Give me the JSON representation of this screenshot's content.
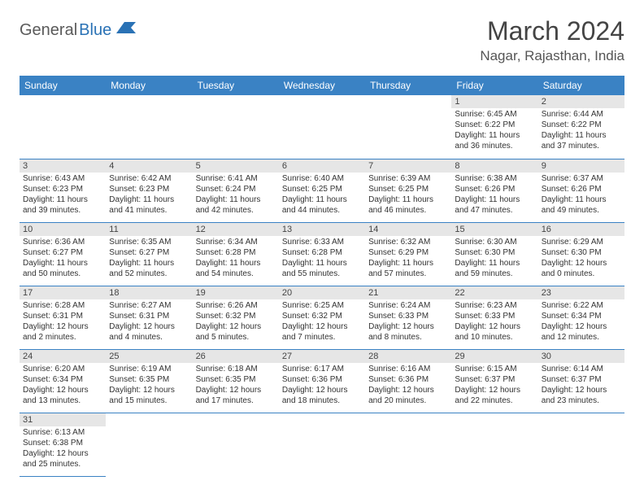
{
  "logo": {
    "part1": "General",
    "part2": "Blue"
  },
  "title": "March 2024",
  "location": "Nagar, Rajasthan, India",
  "colors": {
    "header_bg": "#3a82c4",
    "header_fg": "#ffffff",
    "daynum_bg": "#e6e6e6",
    "rule": "#3a82c4",
    "logo_gray": "#5a5a5a",
    "logo_blue": "#2a72b5"
  },
  "weekdays": [
    "Sunday",
    "Monday",
    "Tuesday",
    "Wednesday",
    "Thursday",
    "Friday",
    "Saturday"
  ],
  "weeks": [
    [
      null,
      null,
      null,
      null,
      null,
      {
        "n": "1",
        "sr": "Sunrise: 6:45 AM",
        "ss": "Sunset: 6:22 PM",
        "dl": "Daylight: 11 hours and 36 minutes."
      },
      {
        "n": "2",
        "sr": "Sunrise: 6:44 AM",
        "ss": "Sunset: 6:22 PM",
        "dl": "Daylight: 11 hours and 37 minutes."
      }
    ],
    [
      {
        "n": "3",
        "sr": "Sunrise: 6:43 AM",
        "ss": "Sunset: 6:23 PM",
        "dl": "Daylight: 11 hours and 39 minutes."
      },
      {
        "n": "4",
        "sr": "Sunrise: 6:42 AM",
        "ss": "Sunset: 6:23 PM",
        "dl": "Daylight: 11 hours and 41 minutes."
      },
      {
        "n": "5",
        "sr": "Sunrise: 6:41 AM",
        "ss": "Sunset: 6:24 PM",
        "dl": "Daylight: 11 hours and 42 minutes."
      },
      {
        "n": "6",
        "sr": "Sunrise: 6:40 AM",
        "ss": "Sunset: 6:25 PM",
        "dl": "Daylight: 11 hours and 44 minutes."
      },
      {
        "n": "7",
        "sr": "Sunrise: 6:39 AM",
        "ss": "Sunset: 6:25 PM",
        "dl": "Daylight: 11 hours and 46 minutes."
      },
      {
        "n": "8",
        "sr": "Sunrise: 6:38 AM",
        "ss": "Sunset: 6:26 PM",
        "dl": "Daylight: 11 hours and 47 minutes."
      },
      {
        "n": "9",
        "sr": "Sunrise: 6:37 AM",
        "ss": "Sunset: 6:26 PM",
        "dl": "Daylight: 11 hours and 49 minutes."
      }
    ],
    [
      {
        "n": "10",
        "sr": "Sunrise: 6:36 AM",
        "ss": "Sunset: 6:27 PM",
        "dl": "Daylight: 11 hours and 50 minutes."
      },
      {
        "n": "11",
        "sr": "Sunrise: 6:35 AM",
        "ss": "Sunset: 6:27 PM",
        "dl": "Daylight: 11 hours and 52 minutes."
      },
      {
        "n": "12",
        "sr": "Sunrise: 6:34 AM",
        "ss": "Sunset: 6:28 PM",
        "dl": "Daylight: 11 hours and 54 minutes."
      },
      {
        "n": "13",
        "sr": "Sunrise: 6:33 AM",
        "ss": "Sunset: 6:28 PM",
        "dl": "Daylight: 11 hours and 55 minutes."
      },
      {
        "n": "14",
        "sr": "Sunrise: 6:32 AM",
        "ss": "Sunset: 6:29 PM",
        "dl": "Daylight: 11 hours and 57 minutes."
      },
      {
        "n": "15",
        "sr": "Sunrise: 6:30 AM",
        "ss": "Sunset: 6:30 PM",
        "dl": "Daylight: 11 hours and 59 minutes."
      },
      {
        "n": "16",
        "sr": "Sunrise: 6:29 AM",
        "ss": "Sunset: 6:30 PM",
        "dl": "Daylight: 12 hours and 0 minutes."
      }
    ],
    [
      {
        "n": "17",
        "sr": "Sunrise: 6:28 AM",
        "ss": "Sunset: 6:31 PM",
        "dl": "Daylight: 12 hours and 2 minutes."
      },
      {
        "n": "18",
        "sr": "Sunrise: 6:27 AM",
        "ss": "Sunset: 6:31 PM",
        "dl": "Daylight: 12 hours and 4 minutes."
      },
      {
        "n": "19",
        "sr": "Sunrise: 6:26 AM",
        "ss": "Sunset: 6:32 PM",
        "dl": "Daylight: 12 hours and 5 minutes."
      },
      {
        "n": "20",
        "sr": "Sunrise: 6:25 AM",
        "ss": "Sunset: 6:32 PM",
        "dl": "Daylight: 12 hours and 7 minutes."
      },
      {
        "n": "21",
        "sr": "Sunrise: 6:24 AM",
        "ss": "Sunset: 6:33 PM",
        "dl": "Daylight: 12 hours and 8 minutes."
      },
      {
        "n": "22",
        "sr": "Sunrise: 6:23 AM",
        "ss": "Sunset: 6:33 PM",
        "dl": "Daylight: 12 hours and 10 minutes."
      },
      {
        "n": "23",
        "sr": "Sunrise: 6:22 AM",
        "ss": "Sunset: 6:34 PM",
        "dl": "Daylight: 12 hours and 12 minutes."
      }
    ],
    [
      {
        "n": "24",
        "sr": "Sunrise: 6:20 AM",
        "ss": "Sunset: 6:34 PM",
        "dl": "Daylight: 12 hours and 13 minutes."
      },
      {
        "n": "25",
        "sr": "Sunrise: 6:19 AM",
        "ss": "Sunset: 6:35 PM",
        "dl": "Daylight: 12 hours and 15 minutes."
      },
      {
        "n": "26",
        "sr": "Sunrise: 6:18 AM",
        "ss": "Sunset: 6:35 PM",
        "dl": "Daylight: 12 hours and 17 minutes."
      },
      {
        "n": "27",
        "sr": "Sunrise: 6:17 AM",
        "ss": "Sunset: 6:36 PM",
        "dl": "Daylight: 12 hours and 18 minutes."
      },
      {
        "n": "28",
        "sr": "Sunrise: 6:16 AM",
        "ss": "Sunset: 6:36 PM",
        "dl": "Daylight: 12 hours and 20 minutes."
      },
      {
        "n": "29",
        "sr": "Sunrise: 6:15 AM",
        "ss": "Sunset: 6:37 PM",
        "dl": "Daylight: 12 hours and 22 minutes."
      },
      {
        "n": "30",
        "sr": "Sunrise: 6:14 AM",
        "ss": "Sunset: 6:37 PM",
        "dl": "Daylight: 12 hours and 23 minutes."
      }
    ],
    [
      {
        "n": "31",
        "sr": "Sunrise: 6:13 AM",
        "ss": "Sunset: 6:38 PM",
        "dl": "Daylight: 12 hours and 25 minutes."
      },
      null,
      null,
      null,
      null,
      null,
      null
    ]
  ]
}
